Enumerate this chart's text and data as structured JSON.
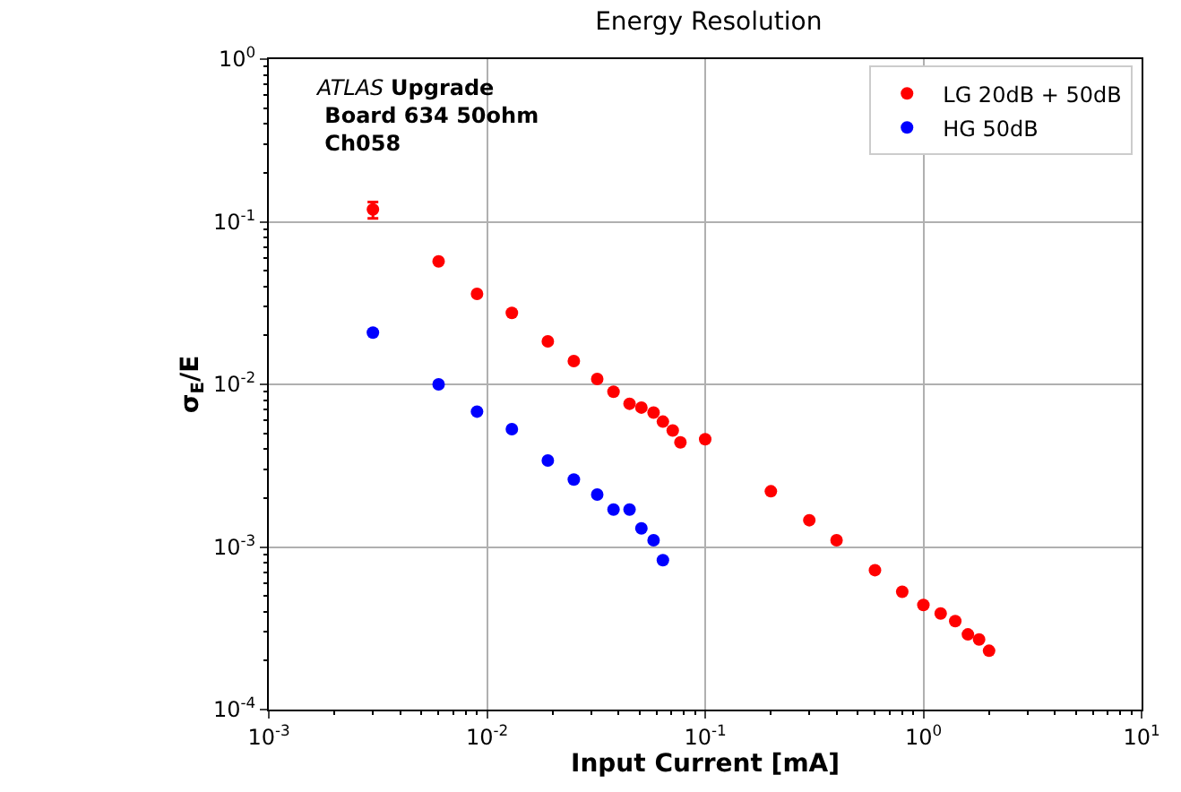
{
  "chart_data": {
    "type": "scatter",
    "title": "Energy Resolution",
    "xlabel": "Input Current [mA]",
    "ylabel": "σ$_{E}$/E",
    "annotations": [
      "ATLAS Upgrade\nBoard 634 50ohm\nCh058"
    ],
    "log": "xy",
    "grid": true,
    "legend": "top right",
    "marker": "circle",
    "xlim": [
      0.001,
      10
    ],
    "ylim": [
      0.0001,
      1
    ],
    "xticks": [
      {
        "value": 0.001,
        "label": "10$^{-3}$"
      },
      {
        "value": 0.01,
        "label": "10$^{-2}$"
      },
      {
        "value": 0.1,
        "label": "10$^{-1}$"
      },
      {
        "value": 1,
        "label": "10$^{0}$"
      },
      {
        "value": 10,
        "label": "10$^{1}$"
      }
    ],
    "yticks": [
      {
        "value": 0.0001,
        "label": "10$^{-4}$"
      },
      {
        "value": 0.001,
        "label": "10$^{-3}$"
      },
      {
        "value": 0.01,
        "label": "10$^{-2}$"
      },
      {
        "value": 0.1,
        "label": "10$^{-1}$"
      },
      {
        "value": 1,
        "label": "10$^{0}$"
      }
    ],
    "series": [
      {
        "name": "LG 20dB + 50dB",
        "color": "#ff0000",
        "x": [
          0.003,
          0.006,
          0.009,
          0.013,
          0.019,
          0.025,
          0.032,
          0.038,
          0.045,
          0.051,
          0.058,
          0.064,
          0.071,
          0.077,
          0.1,
          0.2,
          0.3,
          0.4,
          0.6,
          0.8,
          1.0,
          1.2,
          1.4,
          1.6,
          1.8,
          2.0
        ],
        "values": [
          0.119,
          0.057,
          0.036,
          0.0275,
          0.0184,
          0.0139,
          0.0108,
          0.009,
          0.0076,
          0.0072,
          0.0067,
          0.0059,
          0.0052,
          0.0044,
          0.0046,
          0.0022,
          0.00146,
          0.0011,
          0.00072,
          0.00053,
          0.00044,
          0.00039,
          0.00035,
          0.00029,
          0.00027,
          0.00023
        ],
        "errors": [
          [
            0.105,
            0.132
          ],
          null,
          null,
          null,
          null,
          null,
          null,
          null,
          null,
          null,
          null,
          null,
          null,
          null,
          null,
          null,
          null,
          null,
          null,
          null,
          null,
          null,
          null,
          null,
          null,
          null
        ]
      },
      {
        "name": "HG 50dB",
        "color": "#0000ff",
        "x": [
          0.003,
          0.006,
          0.009,
          0.013,
          0.019,
          0.025,
          0.032,
          0.038,
          0.045,
          0.051,
          0.058,
          0.064
        ],
        "values": [
          0.0208,
          0.01,
          0.0068,
          0.0053,
          0.0034,
          0.0026,
          0.0021,
          0.0017,
          0.0017,
          0.0013,
          0.0011,
          0.00083
        ]
      }
    ]
  }
}
